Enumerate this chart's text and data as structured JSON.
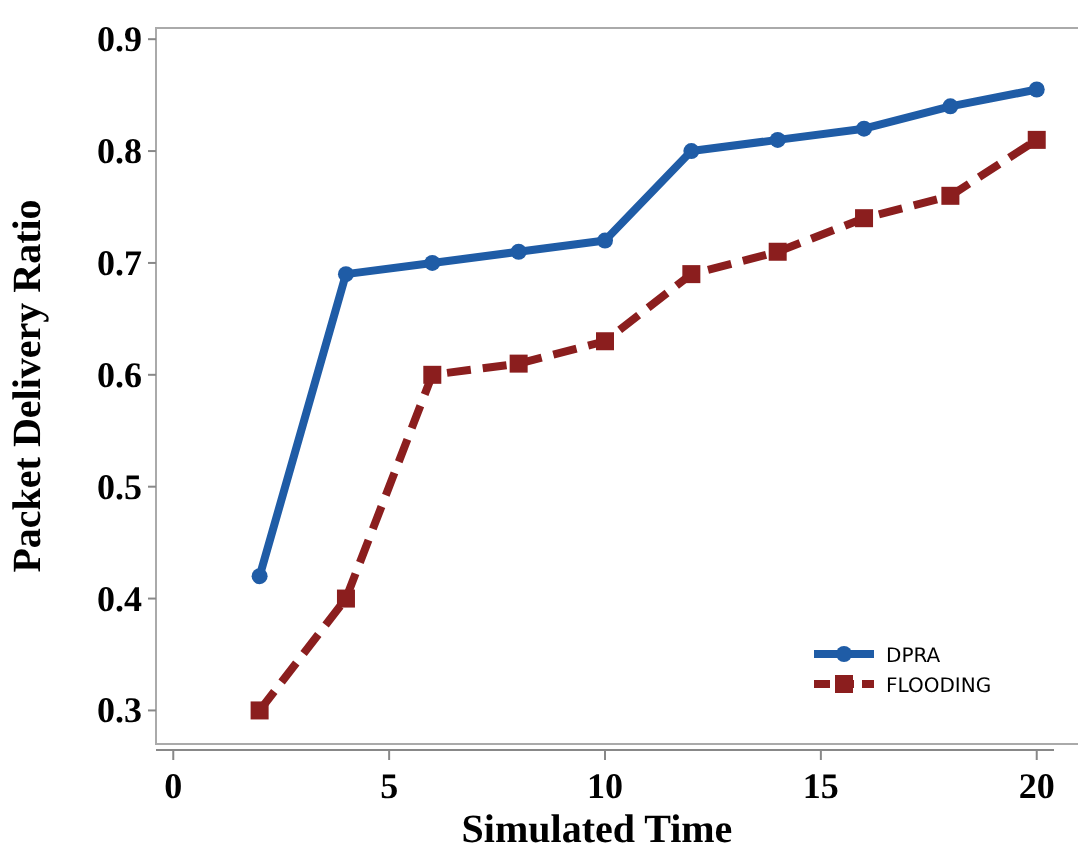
{
  "chart_data": {
    "type": "line",
    "xlabel": "Simulated Time",
    "ylabel": "Packet Delivery Ratio",
    "x": [
      2,
      4,
      6,
      8,
      10,
      12,
      14,
      16,
      18,
      20
    ],
    "series": [
      {
        "name": "DPRA",
        "color": "#1f5ca6",
        "marker": "circle",
        "line_style": "solid",
        "values": [
          0.42,
          0.69,
          0.7,
          0.71,
          0.72,
          0.8,
          0.81,
          0.82,
          0.84,
          0.855
        ]
      },
      {
        "name": "FLOODING",
        "color": "#8b1e1e",
        "marker": "square",
        "line_style": "dashed",
        "values": [
          0.3,
          0.4,
          0.6,
          0.61,
          0.63,
          0.69,
          0.71,
          0.74,
          0.76,
          0.81
        ]
      }
    ],
    "xlim": [
      -0.4,
      20.4
    ],
    "ylim": [
      0.27,
      0.91
    ],
    "xticks": [
      0,
      5,
      10,
      15,
      20
    ],
    "yticks": [
      0.3,
      0.4,
      0.5,
      0.6,
      0.7,
      0.8,
      0.9
    ],
    "grid": false,
    "legend": "bottom right"
  }
}
